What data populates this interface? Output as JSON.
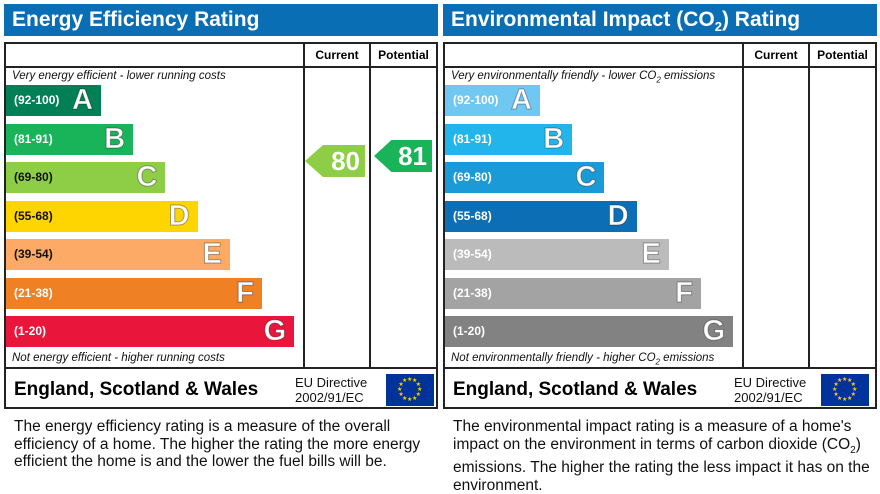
{
  "energy": {
    "title": "Energy Efficiency Rating",
    "col_current": "Current",
    "col_potential": "Potential",
    "top_note": "Very energy efficient - lower running costs",
    "bottom_note": "Not energy efficient - higher running costs",
    "bands": [
      {
        "range": "(92-100)",
        "letter": "A",
        "color": "#008054"
      },
      {
        "range": "(81-91)",
        "letter": "B",
        "color": "#19b459"
      },
      {
        "range": "(69-80)",
        "letter": "C",
        "color": "#8dce46"
      },
      {
        "range": "(55-68)",
        "letter": "D",
        "color": "#ffd500"
      },
      {
        "range": "(39-54)",
        "letter": "E",
        "color": "#fcaa65"
      },
      {
        "range": "(21-38)",
        "letter": "F",
        "color": "#ef8023"
      },
      {
        "range": "(1-20)",
        "letter": "G",
        "color": "#e9153b"
      }
    ],
    "current": {
      "value": "80",
      "color": "#8dce46"
    },
    "potential": {
      "value": "81",
      "color": "#19b459"
    },
    "region": "England, Scotland & Wales",
    "directive_line1": "EU Directive",
    "directive_line2": "2002/91/EC",
    "description": "The energy efficiency rating is a measure of the overall efficiency of a home. The higher the rating the more energy efficient the home is and the lower the fuel bills will be."
  },
  "environment": {
    "title": "Environmental Impact (CO",
    "title_sub": "2",
    "title_end": ") Rating",
    "col_current": "Current",
    "col_potential": "Potential",
    "top_note": "Very environmentally friendly - lower CO",
    "bottom_note": "Not environmentally friendly - higher CO",
    "note_sub": "2",
    "note_end": " emissions",
    "bands": [
      {
        "range": "(92-100)",
        "letter": "A",
        "color": "#6ec8f2"
      },
      {
        "range": "(81-91)",
        "letter": "B",
        "color": "#22b5eb"
      },
      {
        "range": "(69-80)",
        "letter": "C",
        "color": "#1a9ad6"
      },
      {
        "range": "(55-68)",
        "letter": "D",
        "color": "#0c6fb6"
      },
      {
        "range": "(39-54)",
        "letter": "E",
        "color": "#bbbbbb"
      },
      {
        "range": "(21-38)",
        "letter": "F",
        "color": "#a3a3a3"
      },
      {
        "range": "(1-20)",
        "letter": "G",
        "color": "#828282"
      }
    ],
    "region": "England, Scotland & Wales",
    "directive_line1": "EU Directive",
    "directive_line2": "2002/91/EC",
    "description_a": "The environmental impact rating is a measure of a home's impact on the environment in terms of carbon dioxide (CO",
    "description_sub": "2",
    "description_b": ") emissions. The higher the rating the less impact it has on the environment."
  }
}
